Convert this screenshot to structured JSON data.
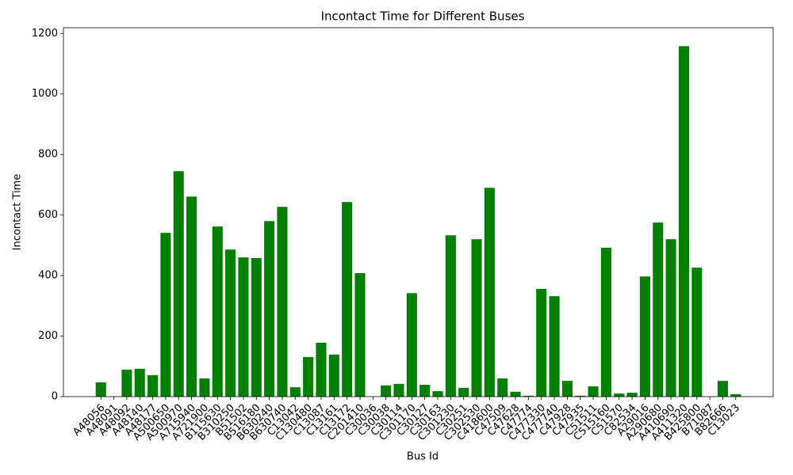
{
  "chart_data": {
    "type": "bar",
    "title": "Incontact Time for Different Buses",
    "x_label": "Bus Id",
    "y_label": "Incontact Time",
    "categories": [
      "A48056",
      "A48091",
      "A48092",
      "A48140",
      "A48177",
      "A500650",
      "A500970",
      "A715940",
      "A721900",
      "B115630",
      "B310250",
      "B51502",
      "B516180",
      "B630240",
      "B630740",
      "C13042",
      "C130480",
      "C13087",
      "C13161",
      "C13172",
      "C201410",
      "C30036",
      "C30038",
      "C30114",
      "C301170",
      "C30127",
      "C30163",
      "C301230",
      "C30251",
      "C302530",
      "C418600",
      "C47509",
      "C47628",
      "C47774",
      "C477330",
      "C477740",
      "C47928",
      "C47935",
      "C51511",
      "C515160",
      "C51570",
      "C82534",
      "A29016",
      "A290680",
      "A410690",
      "A411320",
      "B425800",
      "B71087",
      "B82666",
      "C13023"
    ],
    "values": [
      47,
      0,
      89,
      92,
      71,
      541,
      745,
      661,
      60,
      562,
      486,
      460,
      458,
      580,
      627,
      31,
      131,
      178,
      139,
      643,
      408,
      0,
      37,
      42,
      342,
      39,
      18,
      533,
      29,
      520,
      690,
      60,
      16,
      3,
      356,
      332,
      52,
      3,
      34,
      492,
      10,
      13,
      397,
      575,
      520,
      1158,
      426,
      0,
      52,
      8
    ],
    "color": "#008000",
    "ylim": [
      0,
      1219
    ],
    "yticks": [
      0,
      200,
      400,
      600,
      800,
      1000,
      1200
    ]
  }
}
